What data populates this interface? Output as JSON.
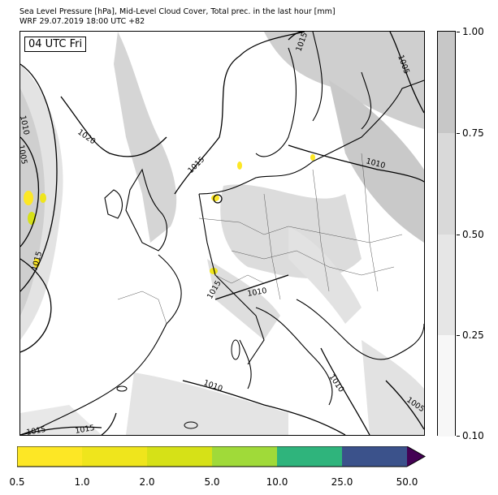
{
  "header": {
    "title_line1": "Sea Level Pressure [hPa], Mid-Level Cloud Cover, Total prec. in the last hour [mm]",
    "title_line2": "WRF 29.07.2019 18:00 UTC +82"
  },
  "map": {
    "time_label": "04 UTC Fri",
    "isobar_labels": [
      "1010",
      "1005",
      "1020",
      "1015",
      "1015",
      "1015",
      "1010",
      "1010",
      "1015",
      "1005",
      "1010",
      "1010",
      "1005",
      "1015",
      "1015",
      "1010"
    ]
  },
  "colorbar_cloud": {
    "ticks": [
      "0.10",
      "0.25",
      "0.50",
      "0.75",
      "1.00"
    ],
    "colors": [
      "#f7f7f7",
      "#e6e6e6",
      "#d9d9d9",
      "#c7c7c7"
    ]
  },
  "colorbar_precip": {
    "ticks": [
      "0.5",
      "1.0",
      "2.0",
      "5.0",
      "10.0",
      "25.0",
      "50.0"
    ],
    "colors": [
      "#fde725",
      "#efe51c",
      "#d6e117",
      "#a0da39",
      "#2fb47c",
      "#3b528b",
      "#440154"
    ]
  }
}
